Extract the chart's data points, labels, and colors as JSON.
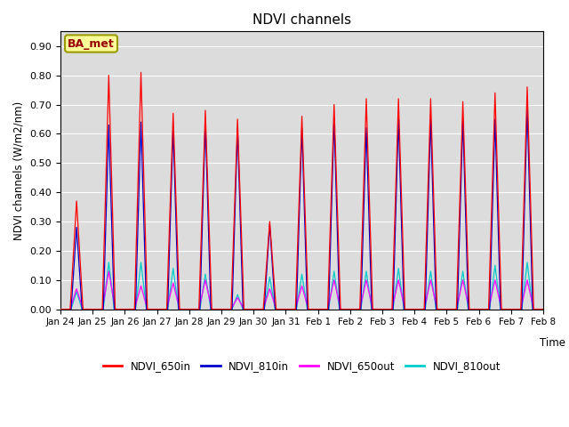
{
  "title": "NDVI channels",
  "ylabel": "NDVI channels (W/m2/nm)",
  "xlabel": "Time",
  "legend_labels": [
    "NDVI_650in",
    "NDVI_810in",
    "NDVI_650out",
    "NDVI_810out"
  ],
  "line_colors": [
    "#ff0000",
    "#0000cc",
    "#ff00ff",
    "#00cccc"
  ],
  "ylim": [
    0.0,
    0.95
  ],
  "yticks": [
    0.0,
    0.1,
    0.2,
    0.3,
    0.4,
    0.5,
    0.6,
    0.7,
    0.8,
    0.9
  ],
  "bg_color": "#dcdcdc",
  "annotation_text": "BA_met",
  "annotation_bg": "#ffff99",
  "annotation_border": "#999900",
  "day_peaks_650in": [
    0.37,
    0.8,
    0.81,
    0.67,
    0.68,
    0.65,
    0.3,
    0.66,
    0.7,
    0.72,
    0.72,
    0.72,
    0.71,
    0.74,
    0.76
  ],
  "day_peaks_810in": [
    0.28,
    0.63,
    0.64,
    0.62,
    0.64,
    0.62,
    0.29,
    0.62,
    0.65,
    0.62,
    0.65,
    0.65,
    0.65,
    0.65,
    0.69
  ],
  "day_peaks_650out": [
    0.07,
    0.13,
    0.08,
    0.09,
    0.1,
    0.04,
    0.07,
    0.08,
    0.1,
    0.1,
    0.1,
    0.1,
    0.1,
    0.1,
    0.1
  ],
  "day_peaks_810out": [
    0.06,
    0.16,
    0.16,
    0.14,
    0.12,
    0.05,
    0.11,
    0.12,
    0.13,
    0.13,
    0.14,
    0.13,
    0.13,
    0.15,
    0.16
  ],
  "n_days": 15,
  "points_per_day": 200,
  "xtick_labels": [
    "Jan 24",
    "Jan 25",
    "Jan 26",
    "Jan 27",
    "Jan 28",
    "Jan 29",
    "Jan 30",
    "Jan 31",
    "Feb 1",
    "Feb 2",
    "Feb 3",
    "Feb 4",
    "Feb 5",
    "Feb 6",
    "Feb 7",
    "Feb 8"
  ]
}
